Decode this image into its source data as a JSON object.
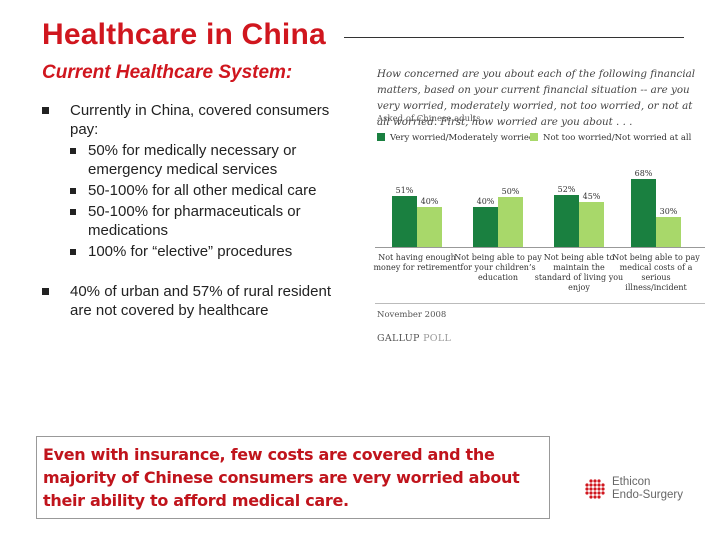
{
  "slide": {
    "title": "Healthcare in China",
    "subtitle": "Current Healthcare System:"
  },
  "bullets": {
    "b1": "Currently in China, covered consumers pay:",
    "sub": [
      "50% for medically necessary or emergency medical services",
      "50-100% for all other medical care",
      "50-100% for pharmaceuticals or medications",
      "100% for “elective” procedures"
    ],
    "b2": "40% of urban and 57% of rural resident are not covered by healthcare"
  },
  "callout": "Even with insurance, few costs are covered and the majority of Chinese consumers are very worried about their ability to afford medical care.",
  "chart_data": {
    "type": "bar",
    "title": "How concerned are you about each of the following financial matters, based on your current financial situation -- are you very worried, moderately worried, not too worried, or not at all worried. First, how worried are you about . . .",
    "subtitle": "Asked of Chinese adults",
    "categories": [
      "Not having enough money for retirement",
      "Not being able to pay for your children's education",
      "Not being able to maintain the standard of living you enjoy",
      "Not being able to pay medical costs of a serious illness/incident"
    ],
    "series": [
      {
        "name": "Very worried/Moderately worried",
        "values": [
          51,
          40,
          52,
          68
        ],
        "labels": [
          "51%",
          "40%",
          "52%",
          "68%"
        ]
      },
      {
        "name": "Not too worried/Not worried at all",
        "values": [
          40,
          50,
          45,
          30
        ],
        "labels": [
          "40%",
          "50%",
          "45%",
          "30%"
        ]
      }
    ],
    "ylim": [
      0,
      70
    ],
    "note": "November 2008",
    "source_main": "GALLUP",
    "source_suffix": "POLL"
  },
  "colors": {
    "series_dark": "#1a8040",
    "series_light": "#a8d86a",
    "brand_red": "#d0161e"
  },
  "logo": {
    "line1": "Ethicon",
    "line2": "Endo-Surgery"
  }
}
